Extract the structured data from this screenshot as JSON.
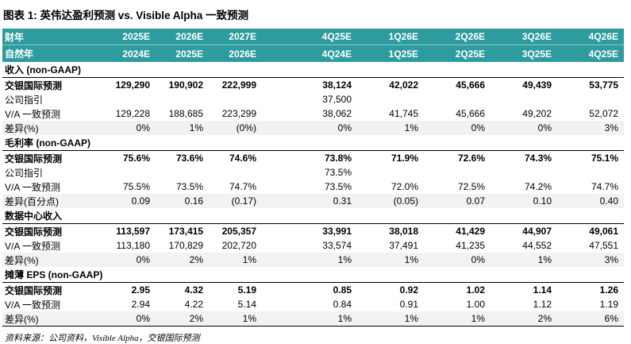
{
  "title": "图表 1: 英伟达盈利预测 vs. Visible Alpha 一致预测",
  "source": "资料来源：公司资料，Visible Alpha，交银国际预测",
  "colors": {
    "header_bg": "#2E9C9E",
    "header_text": "#FFFFFF",
    "shaded_row_bg": "#F2F2F2"
  },
  "chart_data": {
    "type": "table",
    "title": "图表 1: 英伟达盈利预测 vs. Visible Alpha 一致预测",
    "header_rows": [
      {
        "label": "财年",
        "cols": [
          "2025E",
          "2026E",
          "2027E",
          "4Q25E",
          "1Q26E",
          "2Q26E",
          "3Q26E",
          "4Q26E"
        ]
      },
      {
        "label": "自然年",
        "cols": [
          "2024E",
          "2025E",
          "2026E",
          "4Q24E",
          "1Q25E",
          "2Q25E",
          "3Q25E",
          "4Q25E"
        ]
      }
    ],
    "sections": [
      {
        "header": "收入 (non-GAAP)",
        "rows": [
          {
            "label": "交银国际预测",
            "bold": true,
            "shaded": false,
            "cells": [
              "129,290",
              "190,902",
              "222,999",
              "38,124",
              "42,022",
              "45,666",
              "49,439",
              "53,775"
            ]
          },
          {
            "label": "公司指引",
            "bold": false,
            "shaded": false,
            "cells": [
              "",
              "",
              "",
              "37,500",
              "",
              "",
              "",
              ""
            ]
          },
          {
            "label": "V/A 一致预测",
            "bold": false,
            "shaded": false,
            "cells": [
              "129,228",
              "188,685",
              "223,299",
              "38,062",
              "41,745",
              "45,666",
              "49,202",
              "52,072"
            ]
          },
          {
            "label": "差异(%)",
            "bold": false,
            "shaded": true,
            "cells": [
              "0%",
              "1%",
              "(0%)",
              "0%",
              "1%",
              "0%",
              "0%",
              "3%"
            ]
          }
        ]
      },
      {
        "header": "毛利率 (non-GAAP)",
        "rows": [
          {
            "label": "交银国际预测",
            "bold": true,
            "shaded": false,
            "cells": [
              "75.6%",
              "73.6%",
              "74.6%",
              "73.8%",
              "71.9%",
              "72.6%",
              "74.3%",
              "75.1%"
            ]
          },
          {
            "label": "公司指引",
            "bold": false,
            "shaded": false,
            "cells": [
              "",
              "",
              "",
              "73.5%",
              "",
              "",
              "",
              ""
            ]
          },
          {
            "label": "V/A 一致预测",
            "bold": false,
            "shaded": false,
            "cells": [
              "75.5%",
              "73.5%",
              "74.7%",
              "73.5%",
              "72.0%",
              "72.5%",
              "74.2%",
              "74.7%"
            ]
          },
          {
            "label": "差异(百分点)",
            "bold": false,
            "shaded": true,
            "cells": [
              "0.09",
              "0.16",
              "(0.17)",
              "0.31",
              "(0.05)",
              "0.07",
              "0.10",
              "0.40"
            ]
          }
        ]
      },
      {
        "header": "数据中心收入",
        "rows": [
          {
            "label": "交银国际预测",
            "bold": true,
            "shaded": false,
            "cells": [
              "113,597",
              "173,415",
              "205,357",
              "33,991",
              "38,018",
              "41,429",
              "44,907",
              "49,061"
            ]
          },
          {
            "label": "V/A 一致预测",
            "bold": false,
            "shaded": false,
            "cells": [
              "113,180",
              "170,829",
              "202,720",
              "33,574",
              "37,491",
              "41,235",
              "44,552",
              "47,551"
            ]
          },
          {
            "label": "差异(%)",
            "bold": false,
            "shaded": true,
            "cells": [
              "0%",
              "2%",
              "1%",
              "1%",
              "1%",
              "0%",
              "1%",
              "3%"
            ]
          }
        ]
      },
      {
        "header": "摊薄 EPS (non-GAAP)",
        "rows": [
          {
            "label": "交银国际预测",
            "bold": true,
            "shaded": false,
            "cells": [
              "2.95",
              "4.32",
              "5.19",
              "0.85",
              "0.92",
              "1.02",
              "1.14",
              "1.26"
            ]
          },
          {
            "label": "V/A 一致预测",
            "bold": false,
            "shaded": false,
            "cells": [
              "2.94",
              "4.22",
              "5.14",
              "0.84",
              "0.91",
              "1.00",
              "1.12",
              "1.19"
            ]
          },
          {
            "label": "差异(%)",
            "bold": false,
            "shaded": true,
            "cells": [
              "0%",
              "2%",
              "1%",
              "1%",
              "1%",
              "1%",
              "2%",
              "6%"
            ]
          }
        ]
      }
    ]
  }
}
